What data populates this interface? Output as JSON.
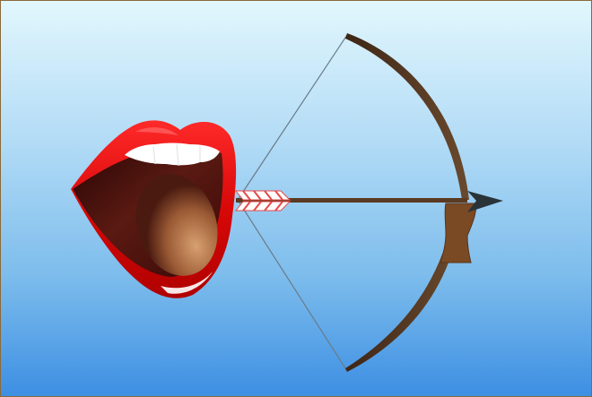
{
  "scene": {
    "background_top": "#e2f7fd",
    "background_bottom": "#3d8fe3",
    "frame_color": "#8a6a3a"
  },
  "mouth": {
    "lip_color": "#e01010",
    "lip_highlight": "#ff8a8a",
    "teeth_color": "#ffffff",
    "interior_dark": "#3a0808",
    "tongue_color": "#c08050"
  },
  "bow": {
    "wood_color": "#5a3a22",
    "grip_color": "#7a4a24",
    "string_color": "#6a7a88"
  },
  "arrow": {
    "shaft_color": "#5a3a22",
    "head_color": "#2a3438",
    "fletching_color": "#e84848"
  }
}
